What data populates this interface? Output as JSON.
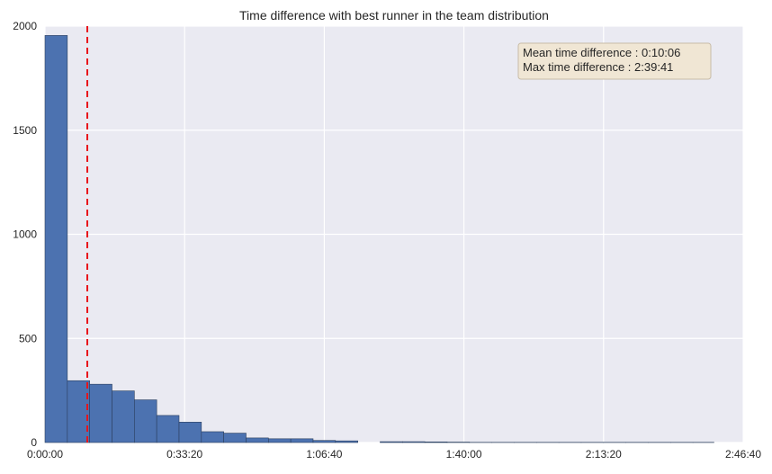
{
  "chart_data": {
    "type": "histogram",
    "title": "Time difference with best runner in the team distribution",
    "xlabel": "",
    "ylabel": "",
    "x_unit": "seconds",
    "xlim": [
      0,
      10000
    ],
    "ylim": [
      0,
      2000
    ],
    "x_ticks": [
      0,
      2000,
      4000,
      6000,
      8000,
      10000
    ],
    "x_tick_labels": [
      "0:00:00",
      "0:33:20",
      "1:06:40",
      "1:40:00",
      "2:13:20",
      "2:46:40"
    ],
    "y_ticks": [
      0,
      500,
      1000,
      1500,
      2000
    ],
    "y_tick_labels": [
      "0",
      "500",
      "1000",
      "1500",
      "2000"
    ],
    "bins": [
      {
        "x0": 0,
        "x1": 320,
        "count": 1955
      },
      {
        "x0": 320,
        "x1": 640,
        "count": 297
      },
      {
        "x0": 640,
        "x1": 960,
        "count": 280
      },
      {
        "x0": 960,
        "x1": 1280,
        "count": 248
      },
      {
        "x0": 1280,
        "x1": 1600,
        "count": 205
      },
      {
        "x0": 1600,
        "x1": 1920,
        "count": 130
      },
      {
        "x0": 1920,
        "x1": 2240,
        "count": 98
      },
      {
        "x0": 2240,
        "x1": 2560,
        "count": 52
      },
      {
        "x0": 2560,
        "x1": 2880,
        "count": 45
      },
      {
        "x0": 2880,
        "x1": 3200,
        "count": 22
      },
      {
        "x0": 3200,
        "x1": 3520,
        "count": 18
      },
      {
        "x0": 3520,
        "x1": 3840,
        "count": 18
      },
      {
        "x0": 3840,
        "x1": 4160,
        "count": 10
      },
      {
        "x0": 4160,
        "x1": 4480,
        "count": 8
      },
      {
        "x0": 4480,
        "x1": 4800,
        "count": 0
      },
      {
        "x0": 4800,
        "x1": 5120,
        "count": 4
      },
      {
        "x0": 5120,
        "x1": 5440,
        "count": 4
      },
      {
        "x0": 5440,
        "x1": 5760,
        "count": 3
      },
      {
        "x0": 5760,
        "x1": 6080,
        "count": 2
      },
      {
        "x0": 6080,
        "x1": 6400,
        "count": 1
      },
      {
        "x0": 6400,
        "x1": 6720,
        "count": 1
      },
      {
        "x0": 6720,
        "x1": 7040,
        "count": 1
      },
      {
        "x0": 7040,
        "x1": 7360,
        "count": 1
      },
      {
        "x0": 7360,
        "x1": 7680,
        "count": 1
      },
      {
        "x0": 7680,
        "x1": 8000,
        "count": 1
      },
      {
        "x0": 8000,
        "x1": 8320,
        "count": 1
      },
      {
        "x0": 8320,
        "x1": 8640,
        "count": 1
      },
      {
        "x0": 8640,
        "x1": 8960,
        "count": 1
      },
      {
        "x0": 8960,
        "x1": 9280,
        "count": 1
      },
      {
        "x0": 9280,
        "x1": 9581,
        "count": 1
      }
    ],
    "mean_line": {
      "x": 606,
      "label": "Mean time difference : 0:10:06",
      "color": "#e8141a",
      "style": "dashed"
    },
    "annotation": {
      "lines": [
        "Mean time difference : 0:10:06",
        "Max time difference : 2:39:41"
      ],
      "placement": "top-right"
    },
    "grid": true,
    "colors": {
      "bar_fill": "#4c72b0",
      "bar_edge": "#2b3f5e",
      "plot_background": "#eaeaf2",
      "grid": "#ffffff",
      "annotation_box": "#f0e6d4",
      "annotation_border": "#c8bca8"
    }
  }
}
